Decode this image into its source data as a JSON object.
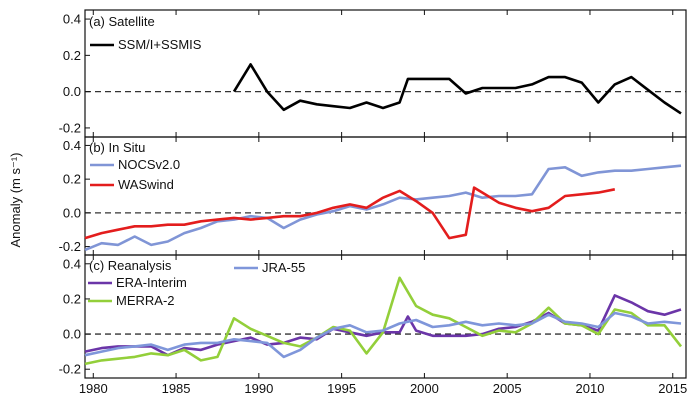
{
  "chart_data": {
    "type": "line",
    "ylabel": "Anomaly (m s⁻¹)",
    "xlim": [
      1979.5,
      2015.8
    ],
    "x_ticks": [
      1980,
      1985,
      1990,
      1995,
      2000,
      2005,
      2010,
      2015
    ],
    "y_ticks": [
      -0.2,
      0.0,
      0.2,
      0.4
    ],
    "ylim": [
      -0.25,
      0.45
    ],
    "reference_line": 0.0,
    "colors": {
      "ssmi": "#000000",
      "nocs": "#8095d6",
      "waswind": "#e31d1d",
      "era": "#6b35a8",
      "merra": "#93cf3a",
      "jra": "#7f96da",
      "zero_line": "#333333"
    },
    "panels": [
      {
        "title": "(a) Satellite",
        "series": [
          {
            "name": "SSM/I+SSMIS",
            "color_key": "ssmi",
            "points": [
              [
                1988.5,
                0.0
              ],
              [
                1989.5,
                0.15
              ],
              [
                1990.5,
                0.0
              ],
              [
                1991.5,
                -0.1
              ],
              [
                1992.5,
                -0.05
              ],
              [
                1993.5,
                -0.07
              ],
              [
                1994.5,
                -0.08
              ],
              [
                1995.5,
                -0.09
              ],
              [
                1996.5,
                -0.06
              ],
              [
                1997.5,
                -0.09
              ],
              [
                1998.5,
                -0.06
              ],
              [
                1999,
                0.07
              ],
              [
                1999.5,
                0.07
              ],
              [
                2000.5,
                0.07
              ],
              [
                2001.5,
                0.07
              ],
              [
                2002.5,
                -0.01
              ],
              [
                2003.5,
                0.02
              ],
              [
                2004.5,
                0.02
              ],
              [
                2005.5,
                0.02
              ],
              [
                2006.5,
                0.04
              ],
              [
                2007.5,
                0.08
              ],
              [
                2008.5,
                0.08
              ],
              [
                2009.5,
                0.05
              ],
              [
                2010.5,
                -0.06
              ],
              [
                2011.5,
                0.04
              ],
              [
                2012.5,
                0.08
              ],
              [
                2013.5,
                0.01
              ],
              [
                2014.5,
                -0.06
              ],
              [
                2015.5,
                -0.12
              ]
            ]
          }
        ]
      },
      {
        "title": "(b) In Situ",
        "series": [
          {
            "name": "NOCSv2.0",
            "color_key": "nocs",
            "points": [
              [
                1979.5,
                -0.22
              ],
              [
                1980.5,
                -0.18
              ],
              [
                1981.5,
                -0.19
              ],
              [
                1982.5,
                -0.14
              ],
              [
                1983.5,
                -0.19
              ],
              [
                1984.5,
                -0.17
              ],
              [
                1985.5,
                -0.12
              ],
              [
                1986.5,
                -0.09
              ],
              [
                1987.5,
                -0.05
              ],
              [
                1988.5,
                -0.04
              ],
              [
                1989.5,
                -0.02
              ],
              [
                1990.5,
                -0.03
              ],
              [
                1991.5,
                -0.09
              ],
              [
                1992.5,
                -0.04
              ],
              [
                1993.5,
                -0.01
              ],
              [
                1994.5,
                0.01
              ],
              [
                1995.5,
                0.04
              ],
              [
                1996.5,
                0.02
              ],
              [
                1997.5,
                0.05
              ],
              [
                1998.5,
                0.09
              ],
              [
                1999.5,
                0.08
              ],
              [
                2000.5,
                0.09
              ],
              [
                2001.5,
                0.1
              ],
              [
                2002.5,
                0.12
              ],
              [
                2003.5,
                0.09
              ],
              [
                2004.5,
                0.1
              ],
              [
                2005.5,
                0.1
              ],
              [
                2006.5,
                0.11
              ],
              [
                2007.5,
                0.26
              ],
              [
                2008.5,
                0.27
              ],
              [
                2009.5,
                0.22
              ],
              [
                2010.5,
                0.24
              ],
              [
                2011.5,
                0.25
              ],
              [
                2012.5,
                0.25
              ],
              [
                2013.5,
                0.26
              ],
              [
                2014.5,
                0.27
              ],
              [
                2015.5,
                0.28
              ]
            ]
          },
          {
            "name": "WASwind",
            "color_key": "waswind",
            "points": [
              [
                1979.5,
                -0.15
              ],
              [
                1980.5,
                -0.12
              ],
              [
                1981.5,
                -0.1
              ],
              [
                1982.5,
                -0.08
              ],
              [
                1983.5,
                -0.08
              ],
              [
                1984.5,
                -0.07
              ],
              [
                1985.5,
                -0.07
              ],
              [
                1986.5,
                -0.05
              ],
              [
                1987.5,
                -0.04
              ],
              [
                1988.5,
                -0.03
              ],
              [
                1989.5,
                -0.04
              ],
              [
                1990.5,
                -0.03
              ],
              [
                1991.5,
                -0.02
              ],
              [
                1992.5,
                -0.02
              ],
              [
                1993.5,
                0.0
              ],
              [
                1994.5,
                0.03
              ],
              [
                1995.5,
                0.05
              ],
              [
                1996.5,
                0.03
              ],
              [
                1997.5,
                0.09
              ],
              [
                1998.5,
                0.13
              ],
              [
                1999.5,
                0.07
              ],
              [
                2000.5,
                0.0
              ],
              [
                2001.5,
                -0.15
              ],
              [
                2002.5,
                -0.13
              ],
              [
                2003,
                0.15
              ],
              [
                2003.5,
                0.12
              ],
              [
                2004.5,
                0.06
              ],
              [
                2005.5,
                0.03
              ],
              [
                2006.5,
                0.01
              ],
              [
                2007.5,
                0.03
              ],
              [
                2008.5,
                0.1
              ],
              [
                2009.5,
                0.11
              ],
              [
                2010.5,
                0.12
              ],
              [
                2011.5,
                0.14
              ]
            ]
          }
        ]
      },
      {
        "title": "(c) Reanalysis",
        "series": [
          {
            "name": "ERA-Interim",
            "color_key": "era",
            "points": [
              [
                1979.5,
                -0.1
              ],
              [
                1980.5,
                -0.08
              ],
              [
                1981.5,
                -0.07
              ],
              [
                1982.5,
                -0.07
              ],
              [
                1983.5,
                -0.07
              ],
              [
                1984.5,
                -0.12
              ],
              [
                1985.5,
                -0.08
              ],
              [
                1986.5,
                -0.09
              ],
              [
                1987.5,
                -0.06
              ],
              [
                1988.5,
                -0.04
              ],
              [
                1989.5,
                -0.02
              ],
              [
                1990.5,
                -0.06
              ],
              [
                1991.5,
                -0.05
              ],
              [
                1992.5,
                -0.02
              ],
              [
                1993.5,
                -0.03
              ],
              [
                1994.5,
                0.03
              ],
              [
                1995.5,
                0.01
              ],
              [
                1996.5,
                -0.01
              ],
              [
                1997.5,
                0.01
              ],
              [
                1998.5,
                0.01
              ],
              [
                1999,
                0.1
              ],
              [
                1999.5,
                0.02
              ],
              [
                2000.5,
                -0.01
              ],
              [
                2001.5,
                -0.01
              ],
              [
                2002.5,
                -0.01
              ],
              [
                2003.5,
                0.0
              ],
              [
                2004.5,
                0.03
              ],
              [
                2005.5,
                0.04
              ],
              [
                2006.5,
                0.07
              ],
              [
                2007.5,
                0.12
              ],
              [
                2008.5,
                0.06
              ],
              [
                2009.5,
                0.05
              ],
              [
                2010.5,
                0.02
              ],
              [
                2011.5,
                0.22
              ],
              [
                2012.5,
                0.18
              ],
              [
                2013.5,
                0.13
              ],
              [
                2014.5,
                0.11
              ],
              [
                2015.5,
                0.14
              ]
            ]
          },
          {
            "name": "MERRA-2",
            "color_key": "merra",
            "points": [
              [
                1979.5,
                -0.17
              ],
              [
                1980.5,
                -0.15
              ],
              [
                1981.5,
                -0.14
              ],
              [
                1982.5,
                -0.13
              ],
              [
                1983.5,
                -0.11
              ],
              [
                1984.5,
                -0.12
              ],
              [
                1985.5,
                -0.09
              ],
              [
                1986.5,
                -0.15
              ],
              [
                1987.5,
                -0.13
              ],
              [
                1988.5,
                0.09
              ],
              [
                1989.5,
                0.03
              ],
              [
                1990.5,
                -0.01
              ],
              [
                1991.5,
                -0.05
              ],
              [
                1992.5,
                -0.07
              ],
              [
                1993.5,
                -0.02
              ],
              [
                1994.5,
                0.04
              ],
              [
                1995.5,
                0.02
              ],
              [
                1996.5,
                -0.11
              ],
              [
                1997.5,
                0.01
              ],
              [
                1998.5,
                0.32
              ],
              [
                1999.5,
                0.16
              ],
              [
                2000.5,
                0.11
              ],
              [
                2001.5,
                0.09
              ],
              [
                2002.5,
                0.04
              ],
              [
                2003.5,
                -0.01
              ],
              [
                2004.5,
                0.02
              ],
              [
                2005.5,
                0.01
              ],
              [
                2006.5,
                0.06
              ],
              [
                2007.5,
                0.15
              ],
              [
                2008.5,
                0.06
              ],
              [
                2009.5,
                0.05
              ],
              [
                2010.5,
                0.0
              ],
              [
                2011.5,
                0.14
              ],
              [
                2012.5,
                0.12
              ],
              [
                2013.5,
                0.05
              ],
              [
                2014.5,
                0.05
              ],
              [
                2015.5,
                -0.07
              ]
            ]
          },
          {
            "name": "JRA-55",
            "color_key": "jra",
            "points": [
              [
                1979.5,
                -0.12
              ],
              [
                1980.5,
                -0.1
              ],
              [
                1981.5,
                -0.08
              ],
              [
                1982.5,
                -0.07
              ],
              [
                1983.5,
                -0.06
              ],
              [
                1984.5,
                -0.09
              ],
              [
                1985.5,
                -0.06
              ],
              [
                1986.5,
                -0.05
              ],
              [
                1987.5,
                -0.05
              ],
              [
                1988.5,
                -0.03
              ],
              [
                1989.5,
                -0.04
              ],
              [
                1990.5,
                -0.05
              ],
              [
                1991.5,
                -0.13
              ],
              [
                1992.5,
                -0.09
              ],
              [
                1993.5,
                -0.02
              ],
              [
                1994.5,
                0.03
              ],
              [
                1995.5,
                0.05
              ],
              [
                1996.5,
                0.01
              ],
              [
                1997.5,
                0.02
              ],
              [
                1998.5,
                0.06
              ],
              [
                1999.5,
                0.08
              ],
              [
                2000.5,
                0.04
              ],
              [
                2001.5,
                0.05
              ],
              [
                2002.5,
                0.07
              ],
              [
                2003.5,
                0.05
              ],
              [
                2004.5,
                0.06
              ],
              [
                2005.5,
                0.05
              ],
              [
                2006.5,
                0.06
              ],
              [
                2007.5,
                0.11
              ],
              [
                2008.5,
                0.07
              ],
              [
                2009.5,
                0.06
              ],
              [
                2010.5,
                0.04
              ],
              [
                2011.5,
                0.12
              ],
              [
                2012.5,
                0.1
              ],
              [
                2013.5,
                0.06
              ],
              [
                2014.5,
                0.07
              ],
              [
                2015.5,
                0.06
              ]
            ]
          }
        ]
      }
    ]
  }
}
